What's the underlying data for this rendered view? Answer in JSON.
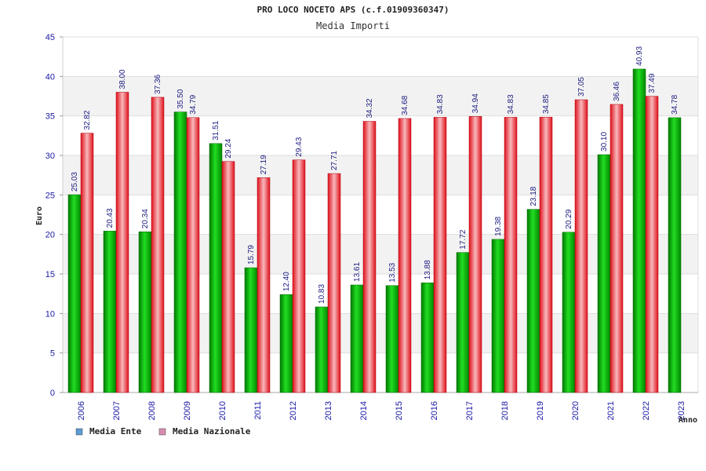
{
  "chart_data": {
    "type": "bar",
    "title": "PRO LOCO NOCETO APS (c.f.01909360347)",
    "subtitle": "Media Importi",
    "xlabel": "Anno",
    "ylabel": "Euro",
    "ylim": [
      0,
      45
    ],
    "yticks": [
      0,
      5,
      10,
      15,
      20,
      25,
      30,
      35,
      40,
      45
    ],
    "grid": true,
    "legend_position": "bottom-left",
    "categories": [
      "2006",
      "2007",
      "2008",
      "2009",
      "2010",
      "2011",
      "2012",
      "2013",
      "2014",
      "2015",
      "2016",
      "2017",
      "2018",
      "2019",
      "2020",
      "2021",
      "2022",
      "2023"
    ],
    "series": [
      {
        "name": "Media Ente",
        "color": "#00aa00",
        "legend_color": "#5b9bd5",
        "values": [
          25.03,
          20.43,
          20.34,
          35.5,
          31.51,
          15.79,
          12.4,
          10.83,
          13.61,
          13.53,
          13.88,
          17.72,
          19.38,
          23.18,
          20.29,
          30.1,
          40.93,
          34.78
        ],
        "labels": [
          "25.03",
          "20.43",
          "20.34",
          "35.50",
          "31.51",
          "15.79",
          "12.40",
          "10.83",
          "13.61",
          "13.53",
          "13.88",
          "17.72",
          "19.38",
          "23.18",
          "20.29",
          "30.10",
          "40.93",
          "34.78"
        ]
      },
      {
        "name": "Media Nazionale",
        "color": "#e8202a",
        "legend_color": "#d98cb0",
        "values": [
          32.82,
          38.0,
          37.36,
          34.79,
          29.24,
          27.19,
          29.43,
          27.71,
          34.32,
          34.68,
          34.83,
          34.94,
          34.83,
          34.85,
          37.05,
          36.46,
          37.49,
          null
        ],
        "labels": [
          "32.82",
          "38.00",
          "37.36",
          "34.79",
          "29.24",
          "27.19",
          "29.43",
          "27.71",
          "34.32",
          "34.68",
          "34.83",
          "34.94",
          "34.83",
          "34.85",
          "37.05",
          "36.46",
          "37.49",
          ""
        ]
      }
    ]
  }
}
